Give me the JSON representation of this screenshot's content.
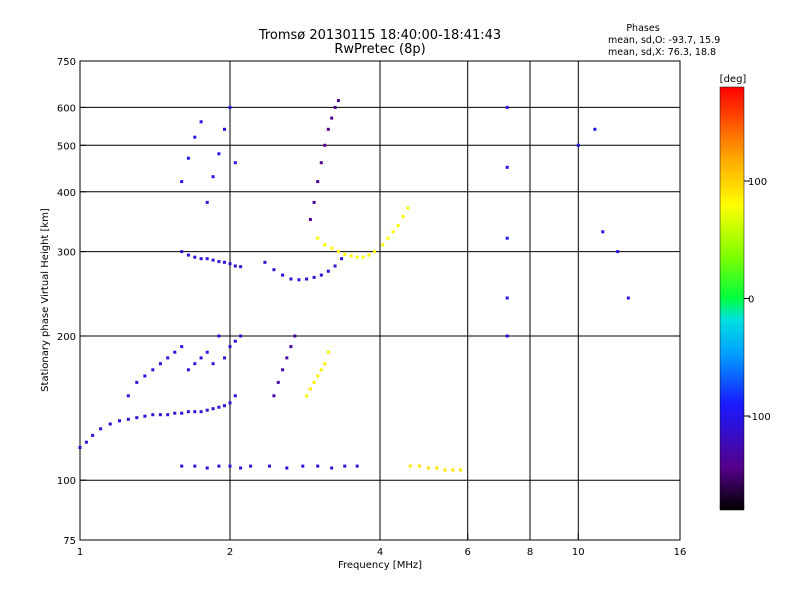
{
  "header": {
    "title": "Tromsø 20130115 18:40:00-18:41:43",
    "subtitle": "RwPretec (8p)"
  },
  "stats": {
    "heading": "Phases",
    "line_o": "mean, sd,O: -93.7, 15.9",
    "line_x": "mean, sd,X: 76.3, 18.8"
  },
  "colorbar": {
    "unit": "[deg]",
    "ticks": [
      {
        "label": "100",
        "value": 100
      },
      {
        "label": "0",
        "value": 0
      },
      {
        "label": "-100",
        "value": -100
      }
    ],
    "range": [
      -180,
      180
    ]
  },
  "chart_data": {
    "type": "scatter",
    "title": "Tromsø 20130115 18:40:00-18:41:43",
    "subtitle": "RwPretec (8p)",
    "xlabel": "Frequency [MHz]",
    "ylabel": "Stationary phase Virtual Height [km]",
    "xscale": "log",
    "yscale": "log",
    "xlim": [
      1,
      16
    ],
    "ylim": [
      75,
      750
    ],
    "x_ticks": [
      {
        "label": "1",
        "value": 1
      },
      {
        "label": "2",
        "value": 2
      },
      {
        "label": "4",
        "value": 4
      },
      {
        "label": "6",
        "value": 6
      },
      {
        "label": "8",
        "value": 8
      },
      {
        "label": "10",
        "value": 10
      },
      {
        "label": "16",
        "value": 16
      }
    ],
    "y_ticks": [
      {
        "label": "75",
        "value": 75
      },
      {
        "label": "100",
        "value": 100
      },
      {
        "label": "200",
        "value": 200
      },
      {
        "label": "300",
        "value": 300
      },
      {
        "label": "400",
        "value": 400
      },
      {
        "label": "500",
        "value": 500
      },
      {
        "label": "600",
        "value": 600
      },
      {
        "label": "750",
        "value": 750
      }
    ],
    "x_gridlines": [
      2,
      4,
      6,
      8,
      10
    ],
    "y_gridlines": [
      100,
      200,
      300,
      400,
      500,
      600
    ],
    "grid": true,
    "color_scale": "phase [deg], -180 black/purple, -100 blue, 0 green, 100 yellow, 180 red",
    "series": [
      {
        "x": [
          1.0,
          1.03,
          1.06,
          1.1,
          1.15,
          1.2,
          1.25,
          1.3,
          1.35,
          1.4,
          1.45,
          1.5,
          1.55,
          1.6,
          1.65,
          1.7,
          1.75,
          1.8,
          1.85,
          1.9,
          1.95,
          2.0,
          2.05
        ],
        "y": [
          117,
          120,
          124,
          128,
          131,
          133,
          134,
          135,
          136,
          137,
          137,
          137,
          138,
          138,
          139,
          139,
          139,
          140,
          141,
          142,
          143,
          145,
          150
        ],
        "phase": -110
      },
      {
        "x": [
          1.25,
          1.3,
          1.35,
          1.4,
          1.45,
          1.5,
          1.55,
          1.6,
          1.65,
          1.7,
          1.75,
          1.8,
          1.85,
          1.9,
          1.95,
          2.0,
          2.05,
          2.1
        ],
        "y": [
          150,
          160,
          165,
          170,
          175,
          180,
          185,
          190,
          170,
          175,
          180,
          185,
          175,
          200,
          180,
          190,
          195,
          200
        ],
        "phase": -105
      },
      {
        "x": [
          1.6,
          1.65,
          1.7,
          1.75,
          1.8,
          1.85,
          1.9,
          1.95,
          2.0,
          2.05,
          2.1
        ],
        "y": [
          300,
          295,
          292,
          290,
          290,
          288,
          286,
          285,
          283,
          280,
          279
        ],
        "phase": -108
      },
      {
        "x": [
          1.6,
          1.65,
          1.7,
          1.75,
          1.8,
          1.85,
          1.9,
          1.95,
          2.0,
          2.05
        ],
        "y": [
          420,
          470,
          520,
          560,
          380,
          430,
          480,
          540,
          600,
          460
        ],
        "phase": -100
      },
      {
        "x": [
          2.35,
          2.45,
          2.55,
          2.65,
          2.75,
          2.85,
          2.95,
          3.05,
          3.15,
          3.25,
          3.35
        ],
        "y": [
          285,
          275,
          268,
          263,
          262,
          263,
          265,
          268,
          273,
          280,
          290
        ],
        "phase": -110
      },
      {
        "x": [
          2.9,
          2.95,
          3.0,
          3.05,
          3.1,
          3.15,
          3.2,
          3.25,
          3.3
        ],
        "y": [
          350,
          380,
          420,
          460,
          500,
          540,
          570,
          600,
          620
        ],
        "phase": -140
      },
      {
        "x": [
          3.0,
          3.1,
          3.2,
          3.3,
          3.4,
          3.5,
          3.6,
          3.7,
          3.8,
          3.9
        ],
        "y": [
          320,
          310,
          305,
          300,
          296,
          294,
          292,
          292,
          295,
          300
        ],
        "phase": 80
      },
      {
        "x": [
          4.05,
          4.15,
          4.25,
          4.35,
          4.45,
          4.55
        ],
        "y": [
          310,
          320,
          330,
          340,
          355,
          370
        ],
        "phase": 78
      },
      {
        "x": [
          2.45,
          2.5,
          2.55,
          2.6,
          2.65,
          2.7
        ],
        "y": [
          150,
          160,
          170,
          180,
          190,
          200
        ],
        "phase": -130
      },
      {
        "x": [
          2.85,
          2.9,
          2.95,
          3.0,
          3.05,
          3.1,
          3.15
        ],
        "y": [
          150,
          155,
          160,
          165,
          170,
          175,
          185
        ],
        "phase": 85
      },
      {
        "x": [
          1.6,
          1.7,
          1.8,
          1.9,
          2.0,
          2.1,
          2.2,
          2.4,
          2.6,
          2.8,
          3.0,
          3.2,
          3.4,
          3.6
        ],
        "y": [
          107,
          107,
          106,
          107,
          107,
          106,
          107,
          107,
          106,
          107,
          107,
          106,
          107,
          107
        ],
        "phase": -105
      },
      {
        "x": [
          4.6,
          4.8,
          5.0,
          5.2,
          5.4,
          5.6,
          5.8
        ],
        "y": [
          107,
          107,
          106,
          106,
          105,
          105,
          105
        ],
        "phase": 90
      },
      {
        "x": [
          7.2,
          7.2,
          7.2,
          7.2,
          7.2
        ],
        "y": [
          600,
          450,
          320,
          240,
          200
        ],
        "phase": -100
      },
      {
        "x": [
          10.0,
          10.8,
          11.2,
          12.0,
          12.6
        ],
        "y": [
          500,
          540,
          330,
          300,
          240
        ],
        "phase": -100
      }
    ]
  }
}
